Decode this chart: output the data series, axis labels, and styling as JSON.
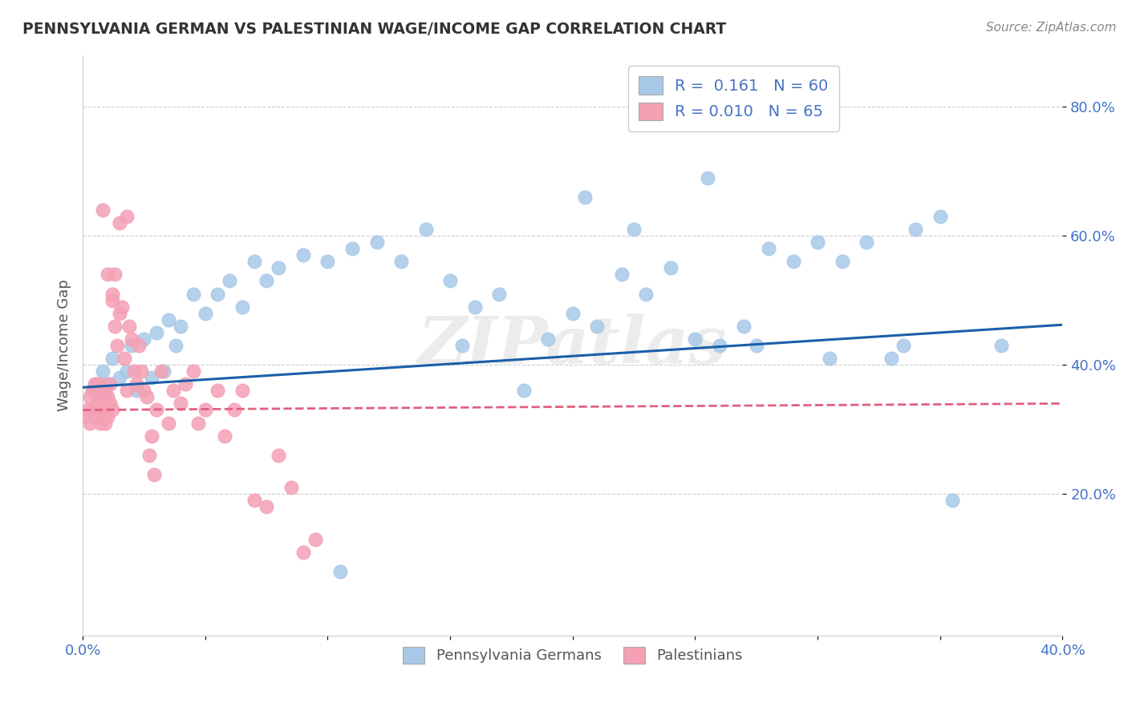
{
  "title": "PENNSYLVANIA GERMAN VS PALESTINIAN WAGE/INCOME GAP CORRELATION CHART",
  "source_text": "Source: ZipAtlas.com",
  "ylabel": "Wage/Income Gap",
  "xlim": [
    0.0,
    0.4
  ],
  "ylim": [
    -0.02,
    0.88
  ],
  "blue_color": "#a8c8e8",
  "pink_color": "#f4a0b5",
  "blue_line_color": "#1a5fa8",
  "pink_line_color": "#e06080",
  "legend1_R": "0.161",
  "legend1_N": "60",
  "legend2_R": "0.010",
  "legend2_N": "65",
  "group1_label": "Pennsylvania Germans",
  "group2_label": "Palestinians",
  "watermark": "ZIPatlas",
  "blue_scatter_x": [
    0.005,
    0.008,
    0.01,
    0.012,
    0.015,
    0.018,
    0.02,
    0.022,
    0.025,
    0.028,
    0.03,
    0.033,
    0.035,
    0.038,
    0.04,
    0.045,
    0.05,
    0.055,
    0.06,
    0.065,
    0.07,
    0.075,
    0.08,
    0.09,
    0.1,
    0.11,
    0.12,
    0.13,
    0.14,
    0.15,
    0.16,
    0.17,
    0.18,
    0.19,
    0.2,
    0.21,
    0.22,
    0.23,
    0.24,
    0.25,
    0.26,
    0.27,
    0.28,
    0.29,
    0.3,
    0.31,
    0.32,
    0.33,
    0.34,
    0.35,
    0.255,
    0.275,
    0.305,
    0.335,
    0.355,
    0.375,
    0.225,
    0.205,
    0.155,
    0.105
  ],
  "blue_scatter_y": [
    0.36,
    0.39,
    0.37,
    0.41,
    0.38,
    0.39,
    0.43,
    0.36,
    0.44,
    0.38,
    0.45,
    0.39,
    0.47,
    0.43,
    0.46,
    0.51,
    0.48,
    0.51,
    0.53,
    0.49,
    0.56,
    0.53,
    0.55,
    0.57,
    0.56,
    0.58,
    0.59,
    0.56,
    0.61,
    0.53,
    0.49,
    0.51,
    0.36,
    0.44,
    0.48,
    0.46,
    0.54,
    0.51,
    0.55,
    0.44,
    0.43,
    0.46,
    0.58,
    0.56,
    0.59,
    0.56,
    0.59,
    0.41,
    0.61,
    0.63,
    0.69,
    0.43,
    0.41,
    0.43,
    0.19,
    0.43,
    0.61,
    0.66,
    0.43,
    0.08
  ],
  "pink_scatter_x": [
    0.001,
    0.002,
    0.003,
    0.003,
    0.004,
    0.004,
    0.005,
    0.005,
    0.006,
    0.006,
    0.007,
    0.007,
    0.007,
    0.008,
    0.008,
    0.009,
    0.009,
    0.01,
    0.01,
    0.011,
    0.011,
    0.012,
    0.012,
    0.013,
    0.013,
    0.014,
    0.015,
    0.016,
    0.017,
    0.018,
    0.019,
    0.02,
    0.021,
    0.022,
    0.023,
    0.024,
    0.025,
    0.026,
    0.027,
    0.028,
    0.029,
    0.03,
    0.032,
    0.035,
    0.037,
    0.04,
    0.042,
    0.045,
    0.047,
    0.05,
    0.055,
    0.058,
    0.062,
    0.065,
    0.07,
    0.075,
    0.08,
    0.085,
    0.09,
    0.095,
    0.008,
    0.01,
    0.012,
    0.015,
    0.018
  ],
  "pink_scatter_y": [
    0.32,
    0.33,
    0.31,
    0.35,
    0.33,
    0.36,
    0.32,
    0.37,
    0.34,
    0.37,
    0.33,
    0.37,
    0.31,
    0.35,
    0.32,
    0.31,
    0.36,
    0.32,
    0.35,
    0.34,
    0.37,
    0.33,
    0.5,
    0.54,
    0.46,
    0.43,
    0.48,
    0.49,
    0.41,
    0.36,
    0.46,
    0.44,
    0.39,
    0.37,
    0.43,
    0.39,
    0.36,
    0.35,
    0.26,
    0.29,
    0.23,
    0.33,
    0.39,
    0.31,
    0.36,
    0.34,
    0.37,
    0.39,
    0.31,
    0.33,
    0.36,
    0.29,
    0.33,
    0.36,
    0.19,
    0.18,
    0.26,
    0.21,
    0.11,
    0.13,
    0.64,
    0.54,
    0.51,
    0.62,
    0.63
  ],
  "blue_trendline_x": [
    0.0,
    0.4
  ],
  "blue_trendline_y": [
    0.365,
    0.462
  ],
  "pink_trendline_x": [
    0.0,
    0.4
  ],
  "pink_trendline_y": [
    0.33,
    0.34
  ]
}
